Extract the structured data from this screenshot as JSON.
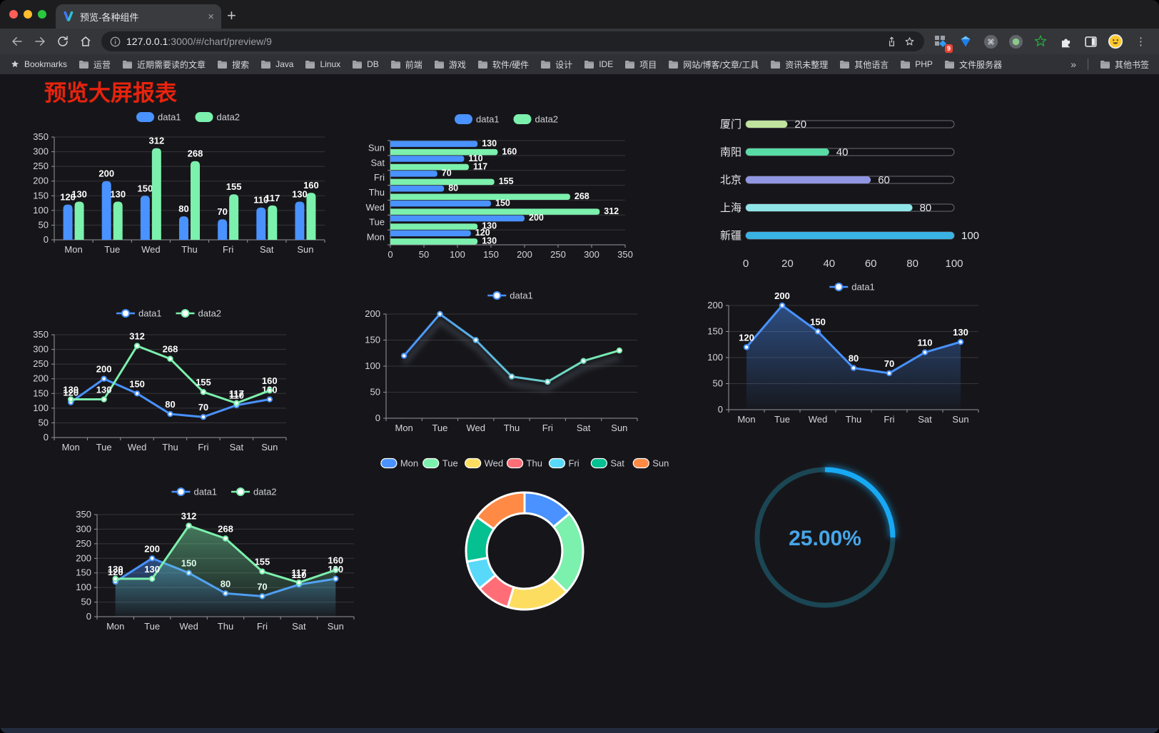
{
  "browser": {
    "traffic_lights": [
      "#ff5f57",
      "#febc2e",
      "#28c840"
    ],
    "tab": {
      "title": "预览-各种组件",
      "close_glyph": "×",
      "new_tab_glyph": "+"
    },
    "address": {
      "host": "127.0.0.1",
      "rest": ":3000/#/chart/preview/9"
    },
    "extensions_badge": "9",
    "bookmarks": {
      "label": "Bookmarks",
      "folders": [
        "运营",
        "近期需要读的文章",
        "搜索",
        "Java",
        "Linux",
        "DB",
        "前端",
        "游戏",
        "软件/硬件",
        "设计",
        "IDE",
        "项目",
        "网站/博客/文章/工具",
        "资讯未整理",
        "其他语言",
        "PHP",
        "文件服务器"
      ],
      "overflow_glyph": "»",
      "other_label": "其他书签"
    }
  },
  "page": {
    "title": "预览大屏报表",
    "title_color": "#e8230d",
    "background": "#16161a"
  },
  "chart_data": [
    {
      "id": "bar-vertical",
      "type": "bar",
      "categories": [
        "Mon",
        "Tue",
        "Wed",
        "Thu",
        "Fri",
        "Sat",
        "Sun"
      ],
      "series": [
        {
          "name": "data1",
          "color": "#4992ff",
          "values": [
            120,
            200,
            150,
            80,
            70,
            110,
            130
          ]
        },
        {
          "name": "data2",
          "color": "#7cf0ad",
          "values": [
            130,
            130,
            312,
            268,
            155,
            117,
            160
          ]
        }
      ],
      "ylim": [
        0,
        350
      ],
      "ytick_step": 50,
      "value_labels": true,
      "legend": true
    },
    {
      "id": "bar-horizontal",
      "type": "hbar",
      "categories": [
        "Mon",
        "Tue",
        "Wed",
        "Thu",
        "Fri",
        "Sat",
        "Sun"
      ],
      "series": [
        {
          "name": "data1",
          "color": "#4992ff",
          "values": [
            120,
            200,
            150,
            80,
            70,
            110,
            130
          ]
        },
        {
          "name": "data2",
          "color": "#7cf0ad",
          "values": [
            130,
            130,
            312,
            268,
            155,
            117,
            160
          ]
        }
      ],
      "xlim": [
        0,
        350
      ],
      "xtick_step": 50,
      "value_labels": true,
      "legend": true
    },
    {
      "id": "progress",
      "type": "progress",
      "max": 100,
      "items": [
        {
          "label": "厦门",
          "value": 20,
          "color": "#c0e49e"
        },
        {
          "label": "南阳",
          "value": 40,
          "color": "#58dca5"
        },
        {
          "label": "北京",
          "value": 60,
          "color": "#9196e3"
        },
        {
          "label": "上海",
          "value": 80,
          "color": "#8fe6e8"
        },
        {
          "label": "新疆",
          "value": 100,
          "color": "#3ab2e3"
        }
      ],
      "xticks": [
        0,
        20,
        40,
        60,
        80,
        100
      ]
    },
    {
      "id": "line-two",
      "type": "line",
      "categories": [
        "Mon",
        "Tue",
        "Wed",
        "Thu",
        "Fri",
        "Sat",
        "Sun"
      ],
      "series": [
        {
          "name": "data1",
          "color": "#4992ff",
          "values": [
            120,
            200,
            150,
            80,
            70,
            110,
            130
          ]
        },
        {
          "name": "data2",
          "color": "#7cf0ad",
          "values": [
            130,
            130,
            312,
            268,
            155,
            117,
            160
          ]
        }
      ],
      "ylim": [
        0,
        350
      ],
      "ytick_step": 50,
      "value_labels": true,
      "legend": true
    },
    {
      "id": "line-gradient",
      "type": "line",
      "categories": [
        "Mon",
        "Tue",
        "Wed",
        "Thu",
        "Fri",
        "Sat",
        "Sun"
      ],
      "series": [
        {
          "name": "data1",
          "color": "#4992ff",
          "color2": "#7cf0ad",
          "gradient_stroke": true,
          "shadow": true,
          "values": [
            120,
            200,
            150,
            80,
            70,
            110,
            130
          ]
        }
      ],
      "ylim": [
        0,
        200
      ],
      "ytick_step": 50,
      "value_labels": false,
      "legend": true
    },
    {
      "id": "line-area",
      "type": "line",
      "categories": [
        "Mon",
        "Tue",
        "Wed",
        "Thu",
        "Fri",
        "Sat",
        "Sun"
      ],
      "series": [
        {
          "name": "data1",
          "color": "#4992ff",
          "area": true,
          "values": [
            120,
            200,
            150,
            80,
            70,
            110,
            130
          ]
        }
      ],
      "ylim": [
        0,
        200
      ],
      "ytick_step": 50,
      "value_labels": true,
      "legend": true
    },
    {
      "id": "line-area-two",
      "type": "line",
      "categories": [
        "Mon",
        "Tue",
        "Wed",
        "Thu",
        "Fri",
        "Sat",
        "Sun"
      ],
      "series": [
        {
          "name": "data1",
          "color": "#4992ff",
          "area": true,
          "values": [
            120,
            200,
            150,
            80,
            70,
            110,
            130
          ]
        },
        {
          "name": "data2",
          "color": "#7cf0ad",
          "area": true,
          "values": [
            130,
            130,
            312,
            268,
            155,
            117,
            160
          ]
        }
      ],
      "ylim": [
        0,
        350
      ],
      "ytick_step": 50,
      "value_labels": true,
      "legend": true
    },
    {
      "id": "pie",
      "type": "pie",
      "inner_ratio": 0.645,
      "items": [
        {
          "name": "Mon",
          "value": 120,
          "color": "#4992ff"
        },
        {
          "name": "Tue",
          "value": 200,
          "color": "#7cf0ad"
        },
        {
          "name": "Wed",
          "value": 150,
          "color": "#fddd60"
        },
        {
          "name": "Thu",
          "value": 80,
          "color": "#ff6e76"
        },
        {
          "name": "Fri",
          "value": 70,
          "color": "#58d9f9"
        },
        {
          "name": "Sat",
          "value": 110,
          "color": "#05c091"
        },
        {
          "name": "Sun",
          "value": 130,
          "color": "#ff8a45"
        }
      ]
    },
    {
      "id": "gauge",
      "type": "gauge",
      "value": 25,
      "max": 100,
      "label": "25.00%",
      "color": "#18a9f5",
      "track_color": "#1b4654",
      "text_color": "#47a6e8"
    }
  ]
}
